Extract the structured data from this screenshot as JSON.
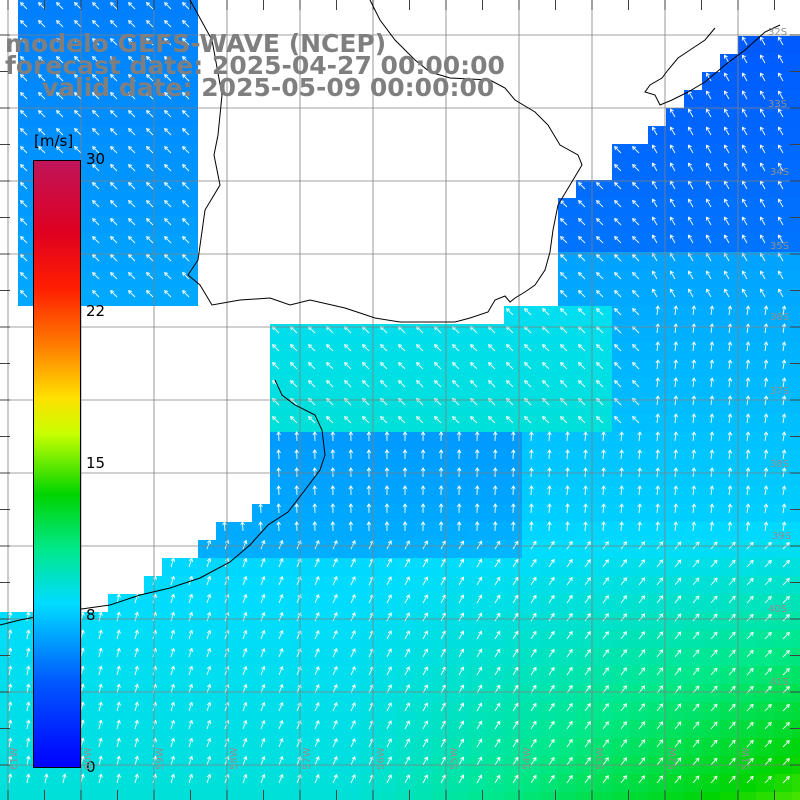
{
  "title": {
    "line1": "modelo GEFS-WAVE (NCEP)",
    "line2": "forecast date: 2025-04-27 00:00:00",
    "line3": "valid date: 2025-05-09 00:00:00"
  },
  "colorbar": {
    "units": "[m/s]",
    "ticks": [
      {
        "label": "30",
        "value": 30
      },
      {
        "label": "22",
        "value": 22
      },
      {
        "label": "15",
        "value": 15
      },
      {
        "label": "8",
        "value": 8
      },
      {
        "label": "0",
        "value": 0
      }
    ],
    "colors": [
      "#0000ff",
      "#0058ff",
      "#00dcff",
      "#00e88a",
      "#00d400",
      "#c8ff00",
      "#ffe000",
      "#ff7800",
      "#ff1e00",
      "#e00020",
      "#c0145a"
    ]
  },
  "map": {
    "variable": "wind speed",
    "units": "m/s",
    "lat_labels": [
      "32S",
      "33S",
      "34S",
      "35S",
      "36S",
      "37S",
      "38S",
      "39S",
      "40S",
      "41S"
    ],
    "lon_labels": [
      "61W",
      "60W",
      "59W",
      "58W",
      "57W",
      "56W",
      "55W",
      "54W",
      "53W",
      "52W",
      "51W"
    ],
    "colors": {
      "land": "#ffffff",
      "coastline": "#000000",
      "grid": "#808080",
      "arrows": "#ffffff",
      "title": "#7f7f7f"
    }
  }
}
